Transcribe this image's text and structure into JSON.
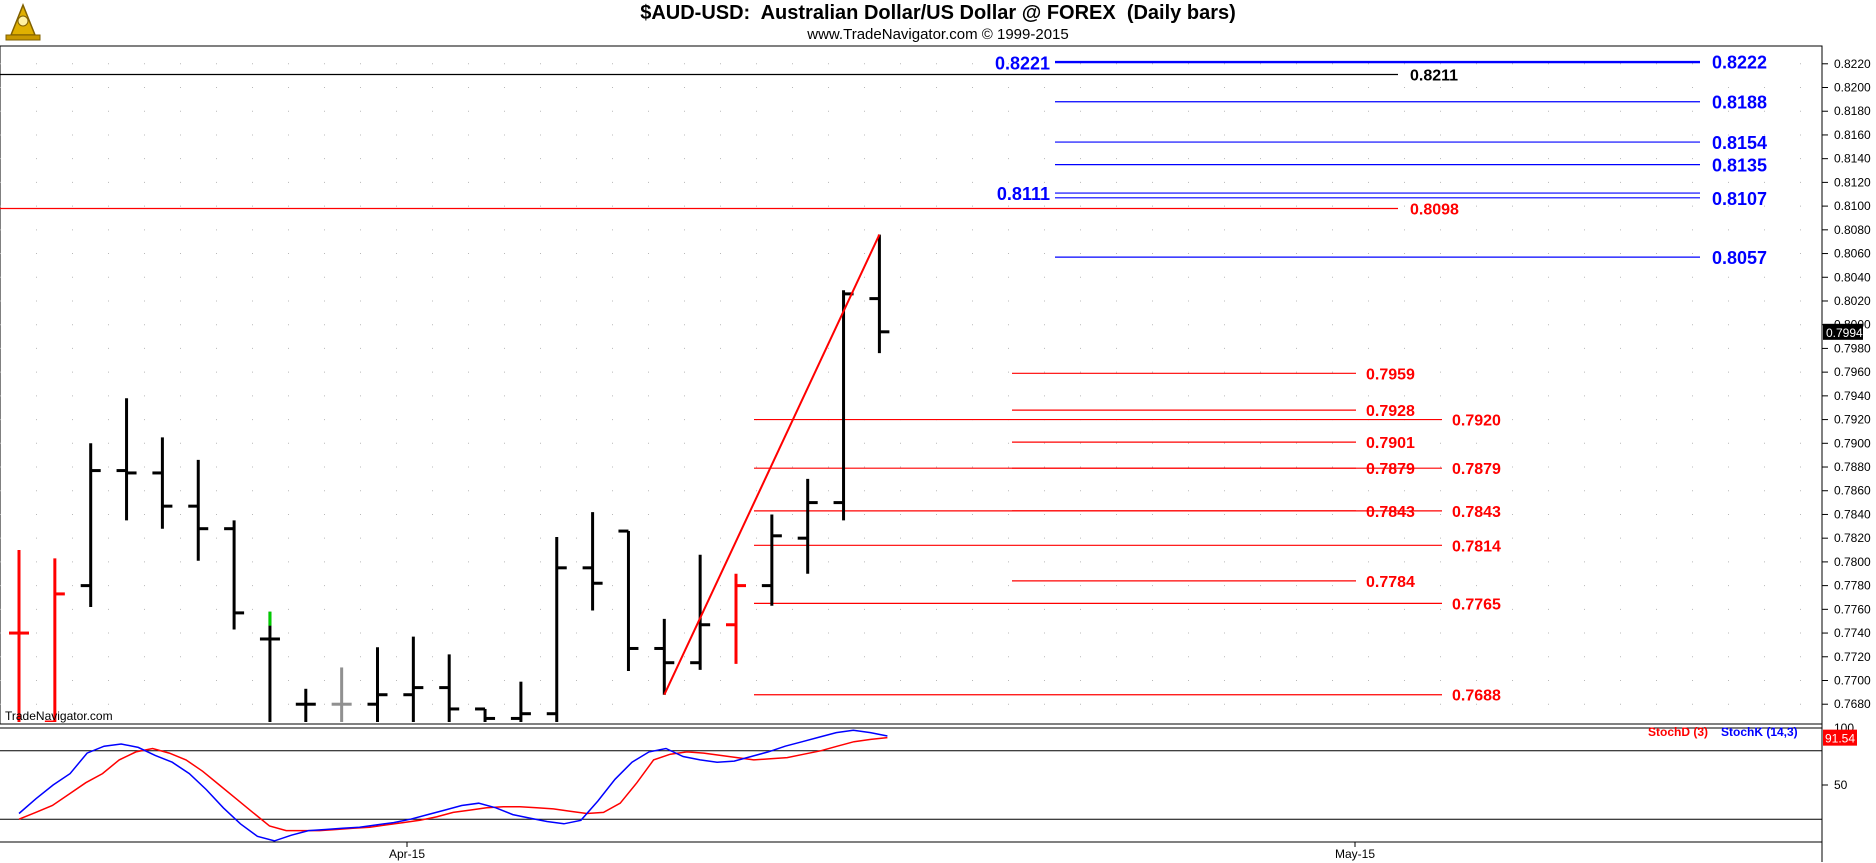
{
  "header": {
    "title": "$AUD-USD:  Australian Dollar/US Dollar @ FOREX  (Daily bars)",
    "subtitle": "www.TradeNavigator.com © 1999-2015"
  },
  "watermark": "TradeNavigator.com",
  "colors": {
    "blue_levels": "#0000ff",
    "red_levels": "#ff0000",
    "bars": "#000000",
    "bar_up_red": "#ff0000",
    "bar_green": "#00cc00",
    "bar_gray": "#909090",
    "stoch_d": "#ff0000",
    "stoch_k": "#0000ff"
  },
  "chart_data": {
    "type": "ohlc",
    "ylim": [
      0.7665,
      0.8235
    ],
    "y_ticks": [
      "0.8220",
      "0.8200",
      "0.8180",
      "0.8160",
      "0.8140",
      "0.8120",
      "0.8100",
      "0.8080",
      "0.8060",
      "0.8040",
      "0.8020",
      "0.8000",
      "0.7980",
      "0.7960",
      "0.7940",
      "0.7920",
      "0.7900",
      "0.7880",
      "0.7860",
      "0.7840",
      "0.7820",
      "0.7800",
      "0.7780",
      "0.7760",
      "0.7740",
      "0.7720",
      "0.7700",
      "0.7680"
    ],
    "x_labels": [
      "Apr-15",
      "May-15"
    ],
    "last_price": "0.7994",
    "bars": [
      {
        "o": 0.774,
        "h": 0.781,
        "l": 0.7665,
        "c": 0.774,
        "color": "red"
      },
      {
        "o": 0.7665,
        "h": 0.7803,
        "l": 0.7665,
        "c": 0.7773,
        "color": "red"
      },
      {
        "o": 0.778,
        "h": 0.79,
        "l": 0.7762,
        "c": 0.7877
      },
      {
        "o": 0.7877,
        "h": 0.7938,
        "l": 0.7835,
        "c": 0.7875
      },
      {
        "o": 0.7875,
        "h": 0.7905,
        "l": 0.7828,
        "c": 0.7847
      },
      {
        "o": 0.7847,
        "h": 0.7886,
        "l": 0.7801,
        "c": 0.7828
      },
      {
        "o": 0.7828,
        "h": 0.7835,
        "l": 0.7743,
        "c": 0.7757
      },
      {
        "o": 0.7735,
        "h": 0.7758,
        "l": 0.7665,
        "c": 0.7735,
        "color": "green_hi"
      },
      {
        "o": 0.768,
        "h": 0.7693,
        "l": 0.7665,
        "c": 0.768
      },
      {
        "o": 0.768,
        "h": 0.7711,
        "l": 0.7665,
        "c": 0.768,
        "color": "gray"
      },
      {
        "o": 0.768,
        "h": 0.7728,
        "l": 0.7665,
        "c": 0.7688
      },
      {
        "o": 0.7688,
        "h": 0.7737,
        "l": 0.7665,
        "c": 0.7694
      },
      {
        "o": 0.7694,
        "h": 0.7722,
        "l": 0.7665,
        "c": 0.7676
      },
      {
        "o": 0.7676,
        "h": 0.7676,
        "l": 0.7665,
        "c": 0.7668
      },
      {
        "o": 0.7668,
        "h": 0.7699,
        "l": 0.7665,
        "c": 0.7672
      },
      {
        "o": 0.7672,
        "h": 0.7821,
        "l": 0.7665,
        "c": 0.7795
      },
      {
        "o": 0.7795,
        "h": 0.7842,
        "l": 0.7759,
        "c": 0.7782
      },
      {
        "o": 0.7826,
        "h": 0.7826,
        "l": 0.7708,
        "c": 0.7727
      },
      {
        "o": 0.7727,
        "h": 0.7752,
        "l": 0.7688,
        "c": 0.7715
      },
      {
        "o": 0.7715,
        "h": 0.7806,
        "l": 0.7709,
        "c": 0.7747
      },
      {
        "o": 0.7747,
        "h": 0.779,
        "l": 0.7714,
        "c": 0.778,
        "color": "red"
      },
      {
        "o": 0.778,
        "h": 0.784,
        "l": 0.7763,
        "c": 0.7822
      },
      {
        "o": 0.782,
        "h": 0.787,
        "l": 0.779,
        "c": 0.785
      },
      {
        "o": 0.785,
        "h": 0.8029,
        "l": 0.7835,
        "c": 0.8026
      },
      {
        "o": 0.8022,
        "h": 0.8076,
        "l": 0.7976,
        "c": 0.7994
      }
    ],
    "trend_line": [
      {
        "bar": 18,
        "y": 0.7688
      },
      {
        "bar": 24,
        "y": 0.8076
      }
    ],
    "levels_blue": [
      {
        "value": 0.8222,
        "label": "0.8222",
        "side": "right"
      },
      {
        "value": 0.8221,
        "label": "0.8221",
        "side": "left"
      },
      {
        "value": 0.8188,
        "label": "0.8188",
        "side": "right"
      },
      {
        "value": 0.8154,
        "label": "0.8154",
        "side": "right"
      },
      {
        "value": 0.8135,
        "label": "0.8135",
        "side": "right"
      },
      {
        "value": 0.8111,
        "label": "0.8111",
        "side": "left"
      },
      {
        "value": 0.8107,
        "label": "0.8107",
        "side": "right"
      },
      {
        "value": 0.8057,
        "label": "0.8057",
        "side": "right"
      }
    ],
    "level_black": {
      "value": 0.8211,
      "label": "0.8211"
    },
    "levels_red": [
      {
        "value": 0.8098,
        "label": "0.8098",
        "set": "long"
      },
      {
        "value": 0.7959,
        "label": "0.7959",
        "set": "short"
      },
      {
        "value": 0.7928,
        "label": "0.7928",
        "set": "short"
      },
      {
        "value": 0.792,
        "label": "0.7920",
        "set": "mid"
      },
      {
        "value": 0.7901,
        "label": "0.7901",
        "set": "short"
      },
      {
        "value": 0.7879,
        "label": "0.7879",
        "set": "short"
      },
      {
        "value": 0.7879,
        "label": "0.7879",
        "set": "mid"
      },
      {
        "value": 0.7843,
        "label": "0.7843",
        "set": "short"
      },
      {
        "value": 0.7843,
        "label": "0.7843",
        "set": "mid"
      },
      {
        "value": 0.7814,
        "label": "0.7814",
        "set": "mid"
      },
      {
        "value": 0.7784,
        "label": "0.7784",
        "set": "short"
      },
      {
        "value": 0.7765,
        "label": "0.7765",
        "set": "mid"
      },
      {
        "value": 0.7688,
        "label": "0.7688",
        "set": "mid"
      }
    ],
    "stochastic": {
      "d_label": "StochD (3)",
      "k_label": "StochK (14,3)",
      "ylim": [
        0,
        100
      ],
      "y_ticks": [
        "100",
        "50"
      ],
      "last_value": "91.54",
      "overbought": 80,
      "oversold": 20,
      "stoch_d": [
        20,
        26,
        32,
        42,
        52,
        60,
        72,
        79,
        82,
        78,
        72,
        62,
        50,
        38,
        26,
        14,
        10,
        10,
        10,
        11,
        12,
        13,
        15,
        17,
        19,
        22,
        26,
        28,
        30,
        31,
        31,
        30,
        29,
        27,
        25,
        26,
        34,
        52,
        72,
        77,
        79,
        78,
        76,
        74,
        72,
        73,
        74,
        77,
        80,
        84,
        88,
        90,
        91.54
      ],
      "stoch_k": [
        25,
        38,
        50,
        60,
        78,
        84,
        86,
        83,
        76,
        70,
        60,
        46,
        30,
        16,
        5,
        1,
        6,
        10,
        11,
        12,
        13,
        15,
        17,
        20,
        24,
        28,
        32,
        34,
        30,
        24,
        21,
        18,
        16,
        19,
        36,
        55,
        70,
        79,
        82,
        75,
        72,
        70,
        71,
        75,
        79,
        84,
        88,
        92,
        96,
        98,
        96,
        93
      ]
    }
  }
}
